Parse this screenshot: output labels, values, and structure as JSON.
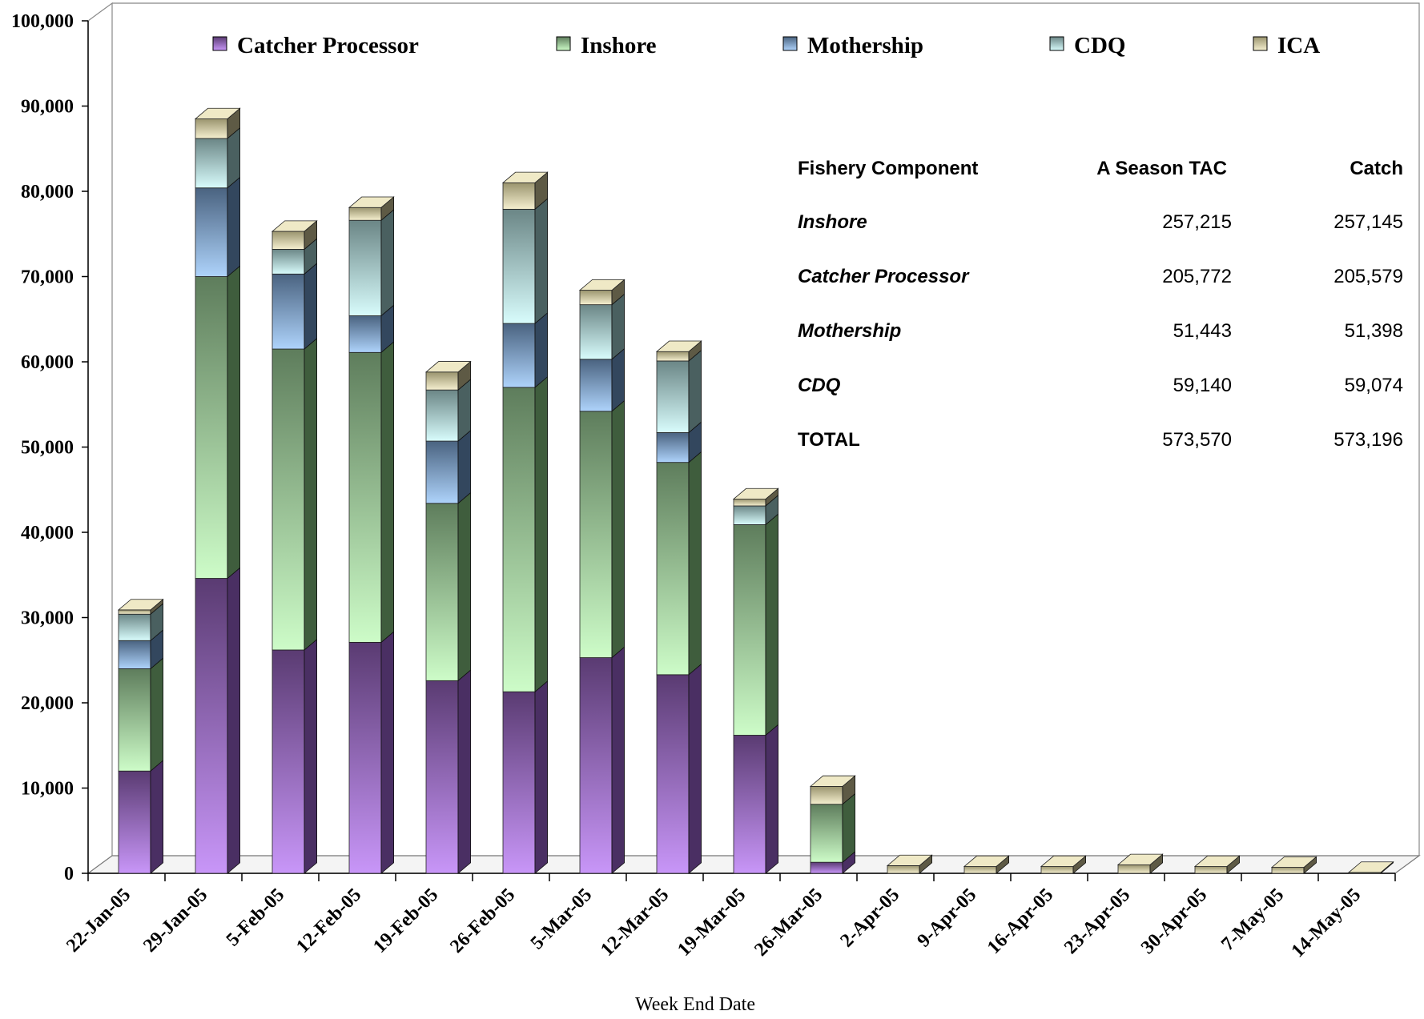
{
  "chart_data": {
    "type": "bar",
    "stacked": true,
    "three_d": true,
    "xlabel": "Week End Date",
    "ylabel": "",
    "ylim": [
      0,
      100000
    ],
    "yticks": [
      0,
      10000,
      20000,
      30000,
      40000,
      50000,
      60000,
      70000,
      80000,
      90000,
      100000
    ],
    "ytick_labels": [
      "0",
      "10,000",
      "20,000",
      "30,000",
      "40,000",
      "50,000",
      "60,000",
      "70,000",
      "80,000",
      "90,000",
      "100,000"
    ],
    "legend_position": "top",
    "categories": [
      "22-Jan-05",
      "29-Jan-05",
      "5-Feb-05",
      "12-Feb-05",
      "19-Feb-05",
      "26-Feb-05",
      "5-Mar-05",
      "12-Mar-05",
      "19-Mar-05",
      "26-Mar-05",
      "2-Apr-05",
      "9-Apr-05",
      "16-Apr-05",
      "23-Apr-05",
      "30-Apr-05",
      "7-May-05",
      "14-May-05"
    ],
    "series": [
      {
        "name": "Catcher Processor",
        "color": "#c39af0",
        "side": "#4a2f63",
        "values": [
          12000,
          34600,
          26200,
          27100,
          22600,
          21300,
          25300,
          23300,
          16200,
          1300,
          0,
          0,
          0,
          0,
          0,
          0,
          0
        ]
      },
      {
        "name": "Inshore",
        "color": "#c6f5c4",
        "side": "#3f5d3d",
        "values": [
          12000,
          35400,
          35300,
          34000,
          20800,
          35700,
          28900,
          24900,
          24700,
          6800,
          0,
          0,
          0,
          0,
          0,
          0,
          0
        ]
      },
      {
        "name": "Mothership",
        "color": "#a7cdf5",
        "side": "#33475e",
        "values": [
          3300,
          10400,
          8800,
          4300,
          7300,
          7500,
          6100,
          3500,
          0,
          0,
          0,
          0,
          0,
          0,
          0,
          0,
          0
        ]
      },
      {
        "name": "CDQ",
        "color": "#cdf5f5",
        "side": "#4a6060",
        "values": [
          3100,
          5800,
          2900,
          11200,
          6000,
          13400,
          6400,
          8400,
          2200,
          0,
          0,
          0,
          0,
          0,
          0,
          0,
          0
        ]
      },
      {
        "name": "ICA",
        "color": "#efe9c6",
        "side": "#5e5a45",
        "values": [
          500,
          2300,
          2100,
          1500,
          2100,
          3100,
          1700,
          1100,
          800,
          2100,
          900,
          800,
          800,
          1000,
          800,
          700,
          100
        ]
      }
    ]
  },
  "summary_table": {
    "headers": [
      "Fishery Component",
      "A Season TAC",
      "Catch"
    ],
    "rows": [
      {
        "name": "Inshore",
        "tac": "257,215",
        "catch": "257,145"
      },
      {
        "name": "Catcher Processor",
        "tac": "205,772",
        "catch": "205,579"
      },
      {
        "name": "Mothership",
        "tac": "51,443",
        "catch": "51,398"
      },
      {
        "name": "CDQ",
        "tac": "59,140",
        "catch": "59,074"
      }
    ],
    "total": {
      "name": "TOTAL",
      "tac": "573,570",
      "catch": "573,196"
    }
  }
}
